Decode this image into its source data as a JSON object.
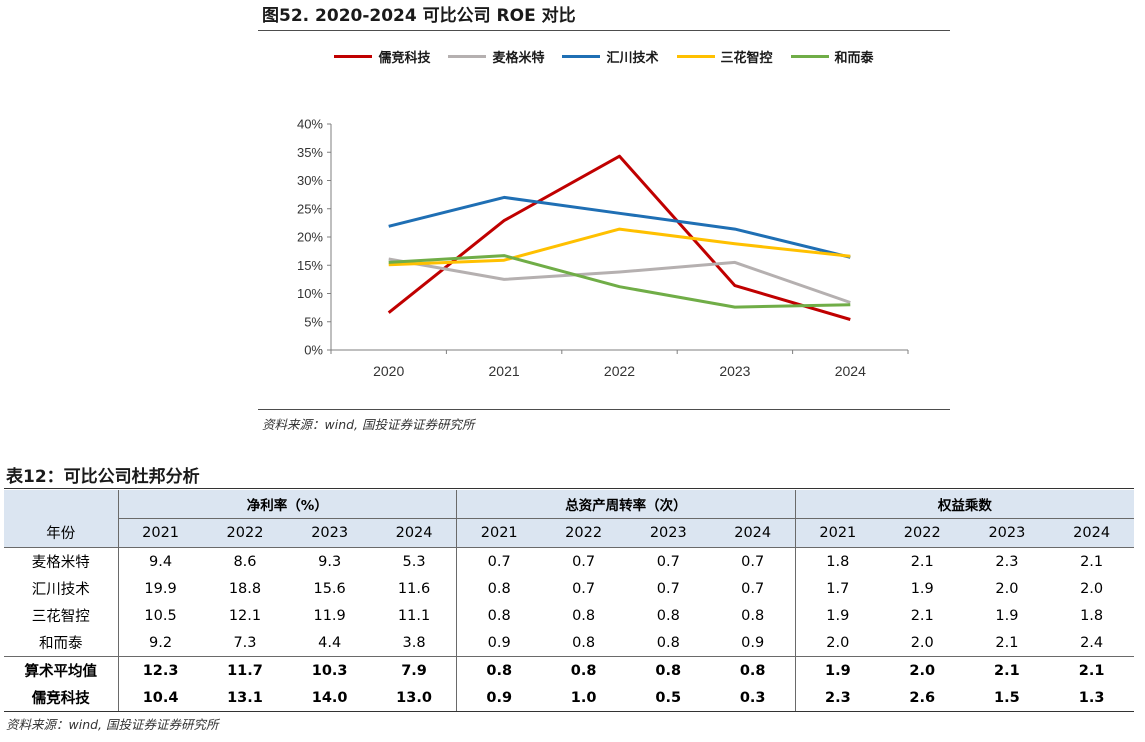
{
  "figure": {
    "title": "图52. 2020-2024 可比公司 ROE 对比",
    "source": "资料来源：wind, 国投证券证券研究所"
  },
  "chart_data": {
    "type": "line",
    "x": [
      "2020",
      "2021",
      "2022",
      "2023",
      "2024"
    ],
    "ylim": [
      0,
      0.4
    ],
    "yticks": [
      "0%",
      "5%",
      "10%",
      "15%",
      "20%",
      "25%",
      "30%",
      "35%",
      "40%"
    ],
    "legend_position": "top",
    "grid": false,
    "series": [
      {
        "name": "儒竞科技",
        "color": "#c00000",
        "values": [
          0.066,
          0.229,
          0.343,
          0.114,
          0.054
        ]
      },
      {
        "name": "麦格米特",
        "color": "#b5b0b0",
        "values": [
          0.161,
          0.125,
          0.138,
          0.155,
          0.084
        ]
      },
      {
        "name": "汇川技术",
        "color": "#1f6fb4",
        "values": [
          0.219,
          0.27,
          0.242,
          0.214,
          0.164
        ]
      },
      {
        "name": "三花智控",
        "color": "#ffc000",
        "values": [
          0.151,
          0.159,
          0.214,
          0.188,
          0.166
        ]
      },
      {
        "name": "和而泰",
        "color": "#70ad47",
        "values": [
          0.155,
          0.167,
          0.112,
          0.076,
          0.08
        ]
      }
    ]
  },
  "table": {
    "title": "表12：可比公司杜邦分析",
    "source": "资料来源：wind, 国投证券证券研究所",
    "row_header": "年份",
    "groups": [
      "净利率（%）",
      "总资产周转率（次）",
      "权益乘数"
    ],
    "years": [
      "2021",
      "2022",
      "2023",
      "2024"
    ],
    "rows": [
      {
        "name": "麦格米特",
        "values": [
          "9.4",
          "8.6",
          "9.3",
          "5.3",
          "0.7",
          "0.7",
          "0.7",
          "0.7",
          "1.8",
          "2.1",
          "2.3",
          "2.1"
        ]
      },
      {
        "name": "汇川技术",
        "values": [
          "19.9",
          "18.8",
          "15.6",
          "11.6",
          "0.8",
          "0.7",
          "0.7",
          "0.7",
          "1.7",
          "1.9",
          "2.0",
          "2.0"
        ]
      },
      {
        "name": "三花智控",
        "values": [
          "10.5",
          "12.1",
          "11.9",
          "11.1",
          "0.8",
          "0.8",
          "0.8",
          "0.8",
          "1.9",
          "2.1",
          "1.9",
          "1.8"
        ]
      },
      {
        "name": "和而泰",
        "values": [
          "9.2",
          "7.3",
          "4.4",
          "3.8",
          "0.9",
          "0.8",
          "0.8",
          "0.9",
          "2.0",
          "2.0",
          "2.1",
          "2.4"
        ]
      },
      {
        "name": "算术平均值",
        "values": [
          "12.3",
          "11.7",
          "10.3",
          "7.9",
          "0.8",
          "0.8",
          "0.8",
          "0.8",
          "1.9",
          "2.0",
          "2.1",
          "2.1"
        ]
      },
      {
        "name": "儒竞科技",
        "values": [
          "10.4",
          "13.1",
          "14.0",
          "13.0",
          "0.9",
          "1.0",
          "0.5",
          "0.3",
          "2.3",
          "2.6",
          "1.5",
          "1.3"
        ]
      }
    ]
  }
}
